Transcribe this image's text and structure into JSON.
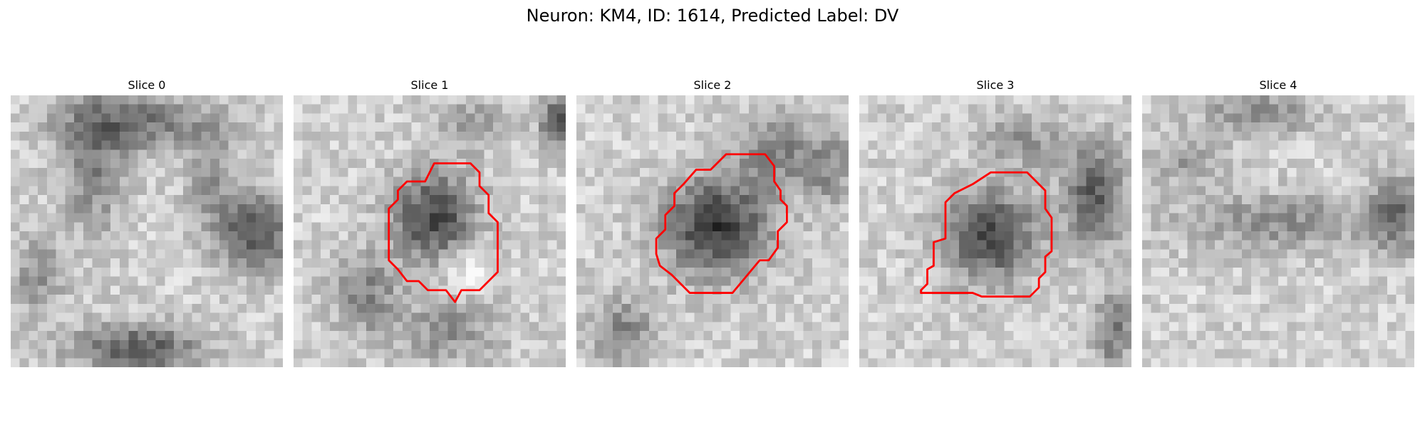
{
  "figure": {
    "title": "Neuron: KM4, ID: 1614, Predicted Label: DV"
  },
  "slices": [
    {
      "label": "Slice 0",
      "contour": false,
      "dark_center": false
    },
    {
      "label": "Slice 1",
      "contour": true,
      "dark_center": true
    },
    {
      "label": "Slice 2",
      "contour": true,
      "dark_center": true
    },
    {
      "label": "Slice 3",
      "contour": true,
      "dark_center": true
    },
    {
      "label": "Slice 4",
      "contour": false,
      "dark_center": false
    }
  ],
  "colors": {
    "contour": "#ff0000",
    "colormap": "gray"
  }
}
